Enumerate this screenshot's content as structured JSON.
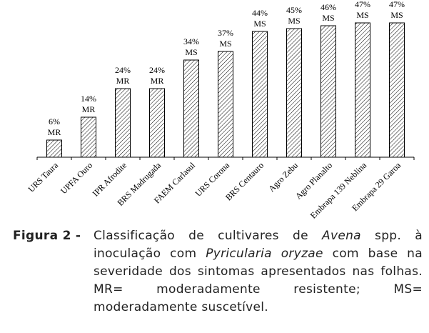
{
  "chart_data": {
    "type": "bar",
    "categories": [
      "URS Taura",
      "UPFA Ouro",
      "IPR Afrodite",
      "BRS Madrugada",
      "FAEM Carlasul",
      "URS Corona",
      "BRS Centauro",
      "Agro Zebu",
      "Agro Planalto",
      "Embrapa 139 Neblina",
      "Embrapa 29 Garoa"
    ],
    "values": [
      6,
      14,
      24,
      24,
      34,
      37,
      44,
      45,
      46,
      47,
      47
    ],
    "value_labels": [
      "6%",
      "14%",
      "24%",
      "24%",
      "34%",
      "37%",
      "44%",
      "45%",
      "46%",
      "47%",
      "47%"
    ],
    "classes": [
      "MR",
      "MR",
      "MR",
      "MR",
      "MS",
      "MS",
      "MS",
      "MS",
      "MS",
      "MS",
      "MS"
    ],
    "color": "#000000",
    "ylim": [
      0,
      50
    ]
  },
  "caption": {
    "label": "Figura 2 -",
    "parts": [
      "Classificação de cultivares de ",
      "Avena",
      " spp. à inoculação com ",
      "Pyricularia oryzae",
      " com base na severidade dos sintomas apresentados nas folhas. MR= moderadamente resistente; MS= moderadamente suscetível."
    ]
  }
}
